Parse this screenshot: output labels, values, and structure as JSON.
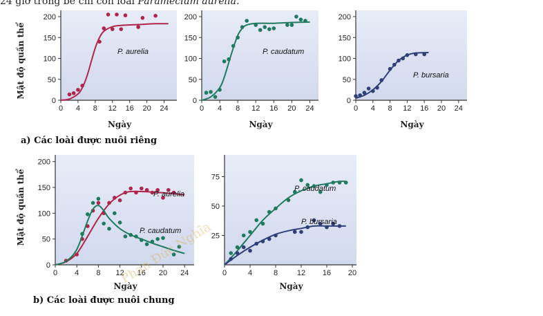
{
  "header_text": {
    "prefix": "24 giờ trong bể chỉ còn loài ",
    "species": "Paramecium aurelia."
  },
  "captions": {
    "a": "a)  Các loài được nuôi riêng",
    "b": "b)  Các loài được nuôi chung"
  },
  "watermark": "Phan Đức Nghĩa",
  "colors": {
    "aurelia": "#b0254a",
    "caudatum": "#1f7a5f",
    "bursaria": "#2e3f77",
    "plot_bg_top": "#e8ecf8",
    "plot_bg_bottom": "#d2d9ee"
  },
  "chart_data": [
    {
      "type": "scatter",
      "xlabel": "Ngày",
      "ylabel": "Mật độ quần thể",
      "xlim": [
        0,
        26
      ],
      "ylim": [
        0,
        205
      ],
      "xticks": [
        0,
        4,
        8,
        12,
        16,
        20,
        24
      ],
      "yticks": [
        0,
        50,
        100,
        150,
        200
      ],
      "series": [
        {
          "name": "P. aurelia",
          "color_key": "aurelia",
          "points": [
            [
              2,
              14
            ],
            [
              3,
              17
            ],
            [
              4,
              25
            ],
            [
              5,
              35
            ],
            [
              9,
              140
            ],
            [
              10,
              172
            ],
            [
              11,
              205
            ],
            [
              12,
              170
            ],
            [
              13,
              205
            ],
            [
              14,
              170
            ],
            [
              15,
              203
            ],
            [
              18,
              175
            ],
            [
              19,
              197
            ],
            [
              22,
              202
            ]
          ],
          "curve": [
            [
              0,
              0
            ],
            [
              2,
              3
            ],
            [
              4,
              15
            ],
            [
              5,
              30
            ],
            [
              6,
              55
            ],
            [
              7,
              90
            ],
            [
              8,
              125
            ],
            [
              9,
              150
            ],
            [
              10,
              165
            ],
            [
              12,
              176
            ],
            [
              14,
              179
            ],
            [
              18,
              181
            ],
            [
              22,
              183
            ],
            [
              25,
              183
            ]
          ]
        }
      ]
    },
    {
      "type": "scatter",
      "xlabel": "Ngày",
      "xlim": [
        0,
        25
      ],
      "ylim": [
        0,
        205
      ],
      "xticks": [
        0,
        4,
        8,
        12,
        16,
        20,
        24
      ],
      "yticks": [
        0,
        50,
        100,
        150,
        200
      ],
      "series": [
        {
          "name": "P. caudatum",
          "color_key": "caudatum",
          "points": [
            [
              1,
              18
            ],
            [
              2,
              20
            ],
            [
              3,
              8
            ],
            [
              4,
              25
            ],
            [
              5,
              93
            ],
            [
              6,
              98
            ],
            [
              7,
              130
            ],
            [
              8,
              150
            ],
            [
              9,
              175
            ],
            [
              10,
              190
            ],
            [
              12,
              180
            ],
            [
              13,
              168
            ],
            [
              14,
              175
            ],
            [
              15,
              170
            ],
            [
              16,
              172
            ],
            [
              19,
              180
            ],
            [
              20,
              180
            ],
            [
              21,
              200
            ],
            [
              22,
              193
            ],
            [
              23,
              190
            ]
          ],
          "curve": [
            [
              0,
              0
            ],
            [
              2,
              8
            ],
            [
              4,
              30
            ],
            [
              5,
              55
            ],
            [
              6,
              90
            ],
            [
              7,
              125
            ],
            [
              8,
              155
            ],
            [
              9,
              172
            ],
            [
              10,
              180
            ],
            [
              12,
              184
            ],
            [
              16,
              184
            ],
            [
              20,
              186
            ],
            [
              24,
              187
            ]
          ]
        }
      ]
    },
    {
      "type": "scatter",
      "xlabel": "Ngày",
      "xlim": [
        0,
        25
      ],
      "ylim": [
        0,
        205
      ],
      "xticks": [
        0,
        4,
        8,
        12,
        16,
        20,
        24
      ],
      "yticks": [
        0,
        50,
        100,
        150,
        200
      ],
      "series": [
        {
          "name": "P. bursaria",
          "color_key": "bursaria",
          "points": [
            [
              0,
              10
            ],
            [
              1,
              12
            ],
            [
              2,
              18
            ],
            [
              3,
              28
            ],
            [
              4,
              22
            ],
            [
              5,
              30
            ],
            [
              6,
              48
            ],
            [
              8,
              75
            ],
            [
              9,
              85
            ],
            [
              10,
              95
            ],
            [
              11,
              100
            ],
            [
              12,
              108
            ],
            [
              14,
              110
            ],
            [
              16,
              110
            ]
          ],
          "curve": [
            [
              0,
              5
            ],
            [
              2,
              12
            ],
            [
              4,
              25
            ],
            [
              6,
              45
            ],
            [
              8,
              72
            ],
            [
              10,
              95
            ],
            [
              12,
              108
            ],
            [
              14,
              113
            ],
            [
              17,
              114
            ]
          ]
        }
      ]
    },
    {
      "type": "scatter",
      "xlabel": "Ngày",
      "ylabel": "Mật độ quần thể",
      "xlim": [
        0,
        25
      ],
      "ylim": [
        0,
        205
      ],
      "xticks": [
        0,
        4,
        8,
        12,
        16,
        20,
        24
      ],
      "yticks": [
        0,
        50,
        100,
        150,
        200
      ],
      "series": [
        {
          "name": "P. aurelia",
          "color_key": "aurelia",
          "points": [
            [
              2,
              8
            ],
            [
              4,
              20
            ],
            [
              5,
              50
            ],
            [
              6,
              75
            ],
            [
              7,
              105
            ],
            [
              8,
              120
            ],
            [
              9,
              100
            ],
            [
              10,
              120
            ],
            [
              11,
              130
            ],
            [
              12,
              125
            ],
            [
              13,
              140
            ],
            [
              14,
              148
            ],
            [
              15,
              140
            ],
            [
              16,
              148
            ],
            [
              17,
              145
            ],
            [
              18,
              140
            ],
            [
              19,
              145
            ],
            [
              20,
              130
            ],
            [
              21,
              145
            ],
            [
              22,
              140
            ]
          ],
          "curve": [
            [
              0,
              0
            ],
            [
              2,
              6
            ],
            [
              4,
              22
            ],
            [
              6,
              55
            ],
            [
              8,
              90
            ],
            [
              10,
              118
            ],
            [
              12,
              135
            ],
            [
              14,
              142
            ],
            [
              18,
              141
            ],
            [
              24,
              136
            ]
          ]
        },
        {
          "name": "P. caudatum",
          "color_key": "caudatum",
          "points": [
            [
              5,
              60
            ],
            [
              6,
              98
            ],
            [
              7,
              120
            ],
            [
              8,
              128
            ],
            [
              9,
              80
            ],
            [
              10,
              70
            ],
            [
              11,
              100
            ],
            [
              12,
              82
            ],
            [
              13,
              55
            ],
            [
              14,
              58
            ],
            [
              15,
              55
            ],
            [
              16,
              48
            ],
            [
              17,
              40
            ],
            [
              18,
              45
            ],
            [
              19,
              50
            ],
            [
              20,
              52
            ],
            [
              22,
              20
            ],
            [
              23,
              35
            ]
          ],
          "curve": [
            [
              0,
              0
            ],
            [
              2,
              7
            ],
            [
              4,
              30
            ],
            [
              6,
              85
            ],
            [
              7,
              108
            ],
            [
              8,
              115
            ],
            [
              9,
              105
            ],
            [
              10,
              90
            ],
            [
              12,
              70
            ],
            [
              14,
              58
            ],
            [
              16,
              50
            ],
            [
              18,
              42
            ],
            [
              20,
              35
            ],
            [
              22,
              28
            ],
            [
              24,
              22
            ]
          ]
        }
      ]
    },
    {
      "type": "scatter",
      "xlabel": "Ngày",
      "xlim": [
        0,
        20
      ],
      "ylim": [
        0,
        90
      ],
      "xticks": [
        0,
        4,
        8,
        12,
        16,
        20
      ],
      "yticks": [
        25,
        50,
        75
      ],
      "series": [
        {
          "name": "P. caudatum",
          "color_key": "caudatum",
          "points": [
            [
              1,
              10
            ],
            [
              2,
              15
            ],
            [
              3,
              25
            ],
            [
              4,
              28
            ],
            [
              5,
              38
            ],
            [
              6,
              35
            ],
            [
              7,
              45
            ],
            [
              8,
              48
            ],
            [
              10,
              55
            ],
            [
              11,
              62
            ],
            [
              12,
              72
            ],
            [
              13,
              68
            ],
            [
              14,
              67
            ],
            [
              15,
              62
            ],
            [
              16,
              68
            ],
            [
              17,
              70
            ],
            [
              18,
              70
            ],
            [
              19,
              70
            ]
          ],
          "curve": [
            [
              0,
              0
            ],
            [
              2,
              12
            ],
            [
              4,
              25
            ],
            [
              6,
              38
            ],
            [
              8,
              48
            ],
            [
              10,
              57
            ],
            [
              12,
              63
            ],
            [
              14,
              67
            ],
            [
              16,
              69
            ],
            [
              18,
              71
            ],
            [
              19,
              71
            ]
          ]
        },
        {
          "name": "P. bursaria",
          "color_key": "bursaria",
          "points": [
            [
              1,
              5
            ],
            [
              2,
              10
            ],
            [
              3,
              15
            ],
            [
              4,
              12
            ],
            [
              5,
              18
            ],
            [
              6,
              20
            ],
            [
              7,
              22
            ],
            [
              8,
              25
            ],
            [
              11,
              28
            ],
            [
              12,
              28
            ],
            [
              13,
              32
            ],
            [
              14,
              38
            ],
            [
              15,
              35
            ],
            [
              16,
              32
            ],
            [
              17,
              35
            ],
            [
              18,
              33
            ]
          ],
          "curve": [
            [
              0,
              0
            ],
            [
              2,
              8
            ],
            [
              4,
              15
            ],
            [
              6,
              21
            ],
            [
              8,
              26
            ],
            [
              10,
              29
            ],
            [
              12,
              31
            ],
            [
              14,
              33
            ],
            [
              16,
              33
            ],
            [
              18,
              33
            ],
            [
              19,
              33
            ]
          ]
        }
      ]
    }
  ]
}
